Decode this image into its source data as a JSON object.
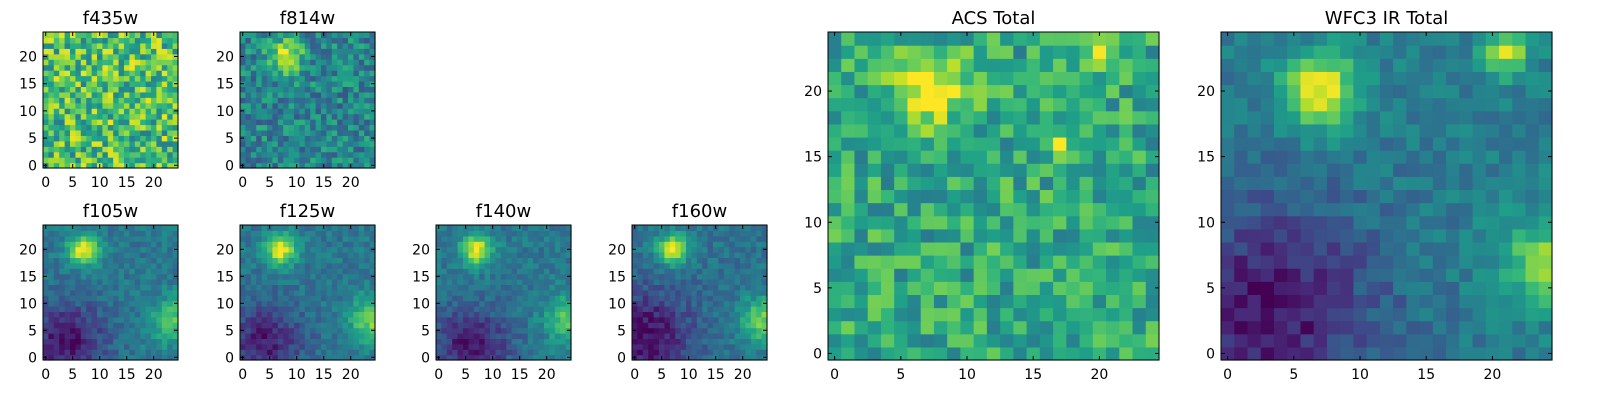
{
  "chart_data": [
    {
      "type": "heatmap",
      "title": "f435w",
      "colormap": "viridis",
      "grid_size": 25,
      "xticks": [
        0,
        5,
        10,
        15,
        20
      ],
      "yticks": [
        0,
        5,
        10,
        15,
        20
      ],
      "xlim": [
        0,
        24
      ],
      "ylim": [
        0,
        24
      ],
      "pattern": "uniform-noise",
      "mean_level": 0.7,
      "features": []
    },
    {
      "type": "heatmap",
      "title": "f814w",
      "colormap": "viridis",
      "grid_size": 25,
      "xticks": [
        0,
        5,
        10,
        15,
        20
      ],
      "yticks": [
        0,
        5,
        10,
        15,
        20
      ],
      "xlim": [
        0,
        24
      ],
      "ylim": [
        0,
        24
      ],
      "pattern": "noise-with-sources",
      "mean_level": 0.45,
      "features": [
        {
          "x": 8,
          "y": 20,
          "brightness": 0.95,
          "size": 2.2
        }
      ]
    },
    {
      "type": "heatmap",
      "title": "f105w",
      "colormap": "viridis",
      "grid_size": 25,
      "xticks": [
        0,
        5,
        10,
        15,
        20
      ],
      "yticks": [
        0,
        5,
        10,
        15,
        20
      ],
      "xlim": [
        0,
        24
      ],
      "ylim": [
        0,
        24
      ],
      "pattern": "smooth-sources",
      "mean_level": 0.4,
      "features": [
        {
          "x": 7,
          "y": 20,
          "brightness": 0.98,
          "size": 2.0
        },
        {
          "x": 24,
          "y": 7,
          "brightness": 0.75,
          "size": 3.0
        },
        {
          "x": 4,
          "y": 3,
          "brightness": 0.05,
          "size": 5.0
        }
      ]
    },
    {
      "type": "heatmap",
      "title": "f125w",
      "colormap": "viridis",
      "grid_size": 25,
      "xticks": [
        0,
        5,
        10,
        15,
        20
      ],
      "yticks": [
        0,
        5,
        10,
        15,
        20
      ],
      "xlim": [
        0,
        24
      ],
      "ylim": [
        0,
        24
      ],
      "pattern": "smooth-sources",
      "mean_level": 0.4,
      "features": [
        {
          "x": 7,
          "y": 20,
          "brightness": 0.98,
          "size": 2.0
        },
        {
          "x": 24,
          "y": 7,
          "brightness": 0.8,
          "size": 3.0
        },
        {
          "x": 4,
          "y": 3,
          "brightness": 0.08,
          "size": 5.0
        }
      ]
    },
    {
      "type": "heatmap",
      "title": "f140w",
      "colormap": "viridis",
      "grid_size": 25,
      "xticks": [
        0,
        5,
        10,
        15,
        20
      ],
      "yticks": [
        0,
        5,
        10,
        15,
        20
      ],
      "xlim": [
        0,
        24
      ],
      "ylim": [
        0,
        24
      ],
      "pattern": "smooth-sources",
      "mean_level": 0.4,
      "features": [
        {
          "x": 7,
          "y": 20,
          "brightness": 0.98,
          "size": 2.0
        },
        {
          "x": 24,
          "y": 7,
          "brightness": 0.75,
          "size": 3.0
        },
        {
          "x": 6,
          "y": 2,
          "brightness": 0.05,
          "size": 5.0
        }
      ]
    },
    {
      "type": "heatmap",
      "title": "f160w",
      "colormap": "viridis",
      "grid_size": 25,
      "xticks": [
        0,
        5,
        10,
        15,
        20
      ],
      "yticks": [
        0,
        5,
        10,
        15,
        20
      ],
      "xlim": [
        0,
        24
      ],
      "ylim": [
        0,
        24
      ],
      "pattern": "smooth-sources",
      "mean_level": 0.38,
      "features": [
        {
          "x": 7,
          "y": 20,
          "brightness": 0.98,
          "size": 2.0
        },
        {
          "x": 24,
          "y": 7,
          "brightness": 0.8,
          "size": 3.0
        },
        {
          "x": 2,
          "y": 4,
          "brightness": 0.03,
          "size": 6.0
        }
      ]
    },
    {
      "type": "heatmap",
      "title": "ACS Total",
      "colormap": "viridis",
      "grid_size": 25,
      "xticks": [
        0,
        5,
        10,
        15,
        20
      ],
      "yticks": [
        0,
        5,
        10,
        15,
        20
      ],
      "xlim": [
        0,
        24
      ],
      "ylim": [
        0,
        24
      ],
      "pattern": "noise-with-sources",
      "mean_level": 0.6,
      "features": [
        {
          "x": 7,
          "y": 20,
          "brightness": 1.0,
          "size": 2.0
        },
        {
          "x": 20,
          "y": 23,
          "brightness": 0.95,
          "size": 1.2
        },
        {
          "x": 17,
          "y": 16,
          "brightness": 0.9,
          "size": 0.8
        }
      ]
    },
    {
      "type": "heatmap",
      "title": "WFC3 IR Total",
      "colormap": "viridis",
      "grid_size": 25,
      "xticks": [
        0,
        5,
        10,
        15,
        20
      ],
      "yticks": [
        0,
        5,
        10,
        15,
        20
      ],
      "xlim": [
        0,
        24
      ],
      "ylim": [
        0,
        24
      ],
      "pattern": "smooth-sources",
      "mean_level": 0.42,
      "features": [
        {
          "x": 7,
          "y": 20,
          "brightness": 1.0,
          "size": 2.0
        },
        {
          "x": 21,
          "y": 23,
          "brightness": 0.9,
          "size": 1.2
        },
        {
          "x": 24,
          "y": 7,
          "brightness": 0.8,
          "size": 2.5
        },
        {
          "x": 3,
          "y": 3,
          "brightness": 0.05,
          "size": 6.0
        }
      ]
    }
  ]
}
